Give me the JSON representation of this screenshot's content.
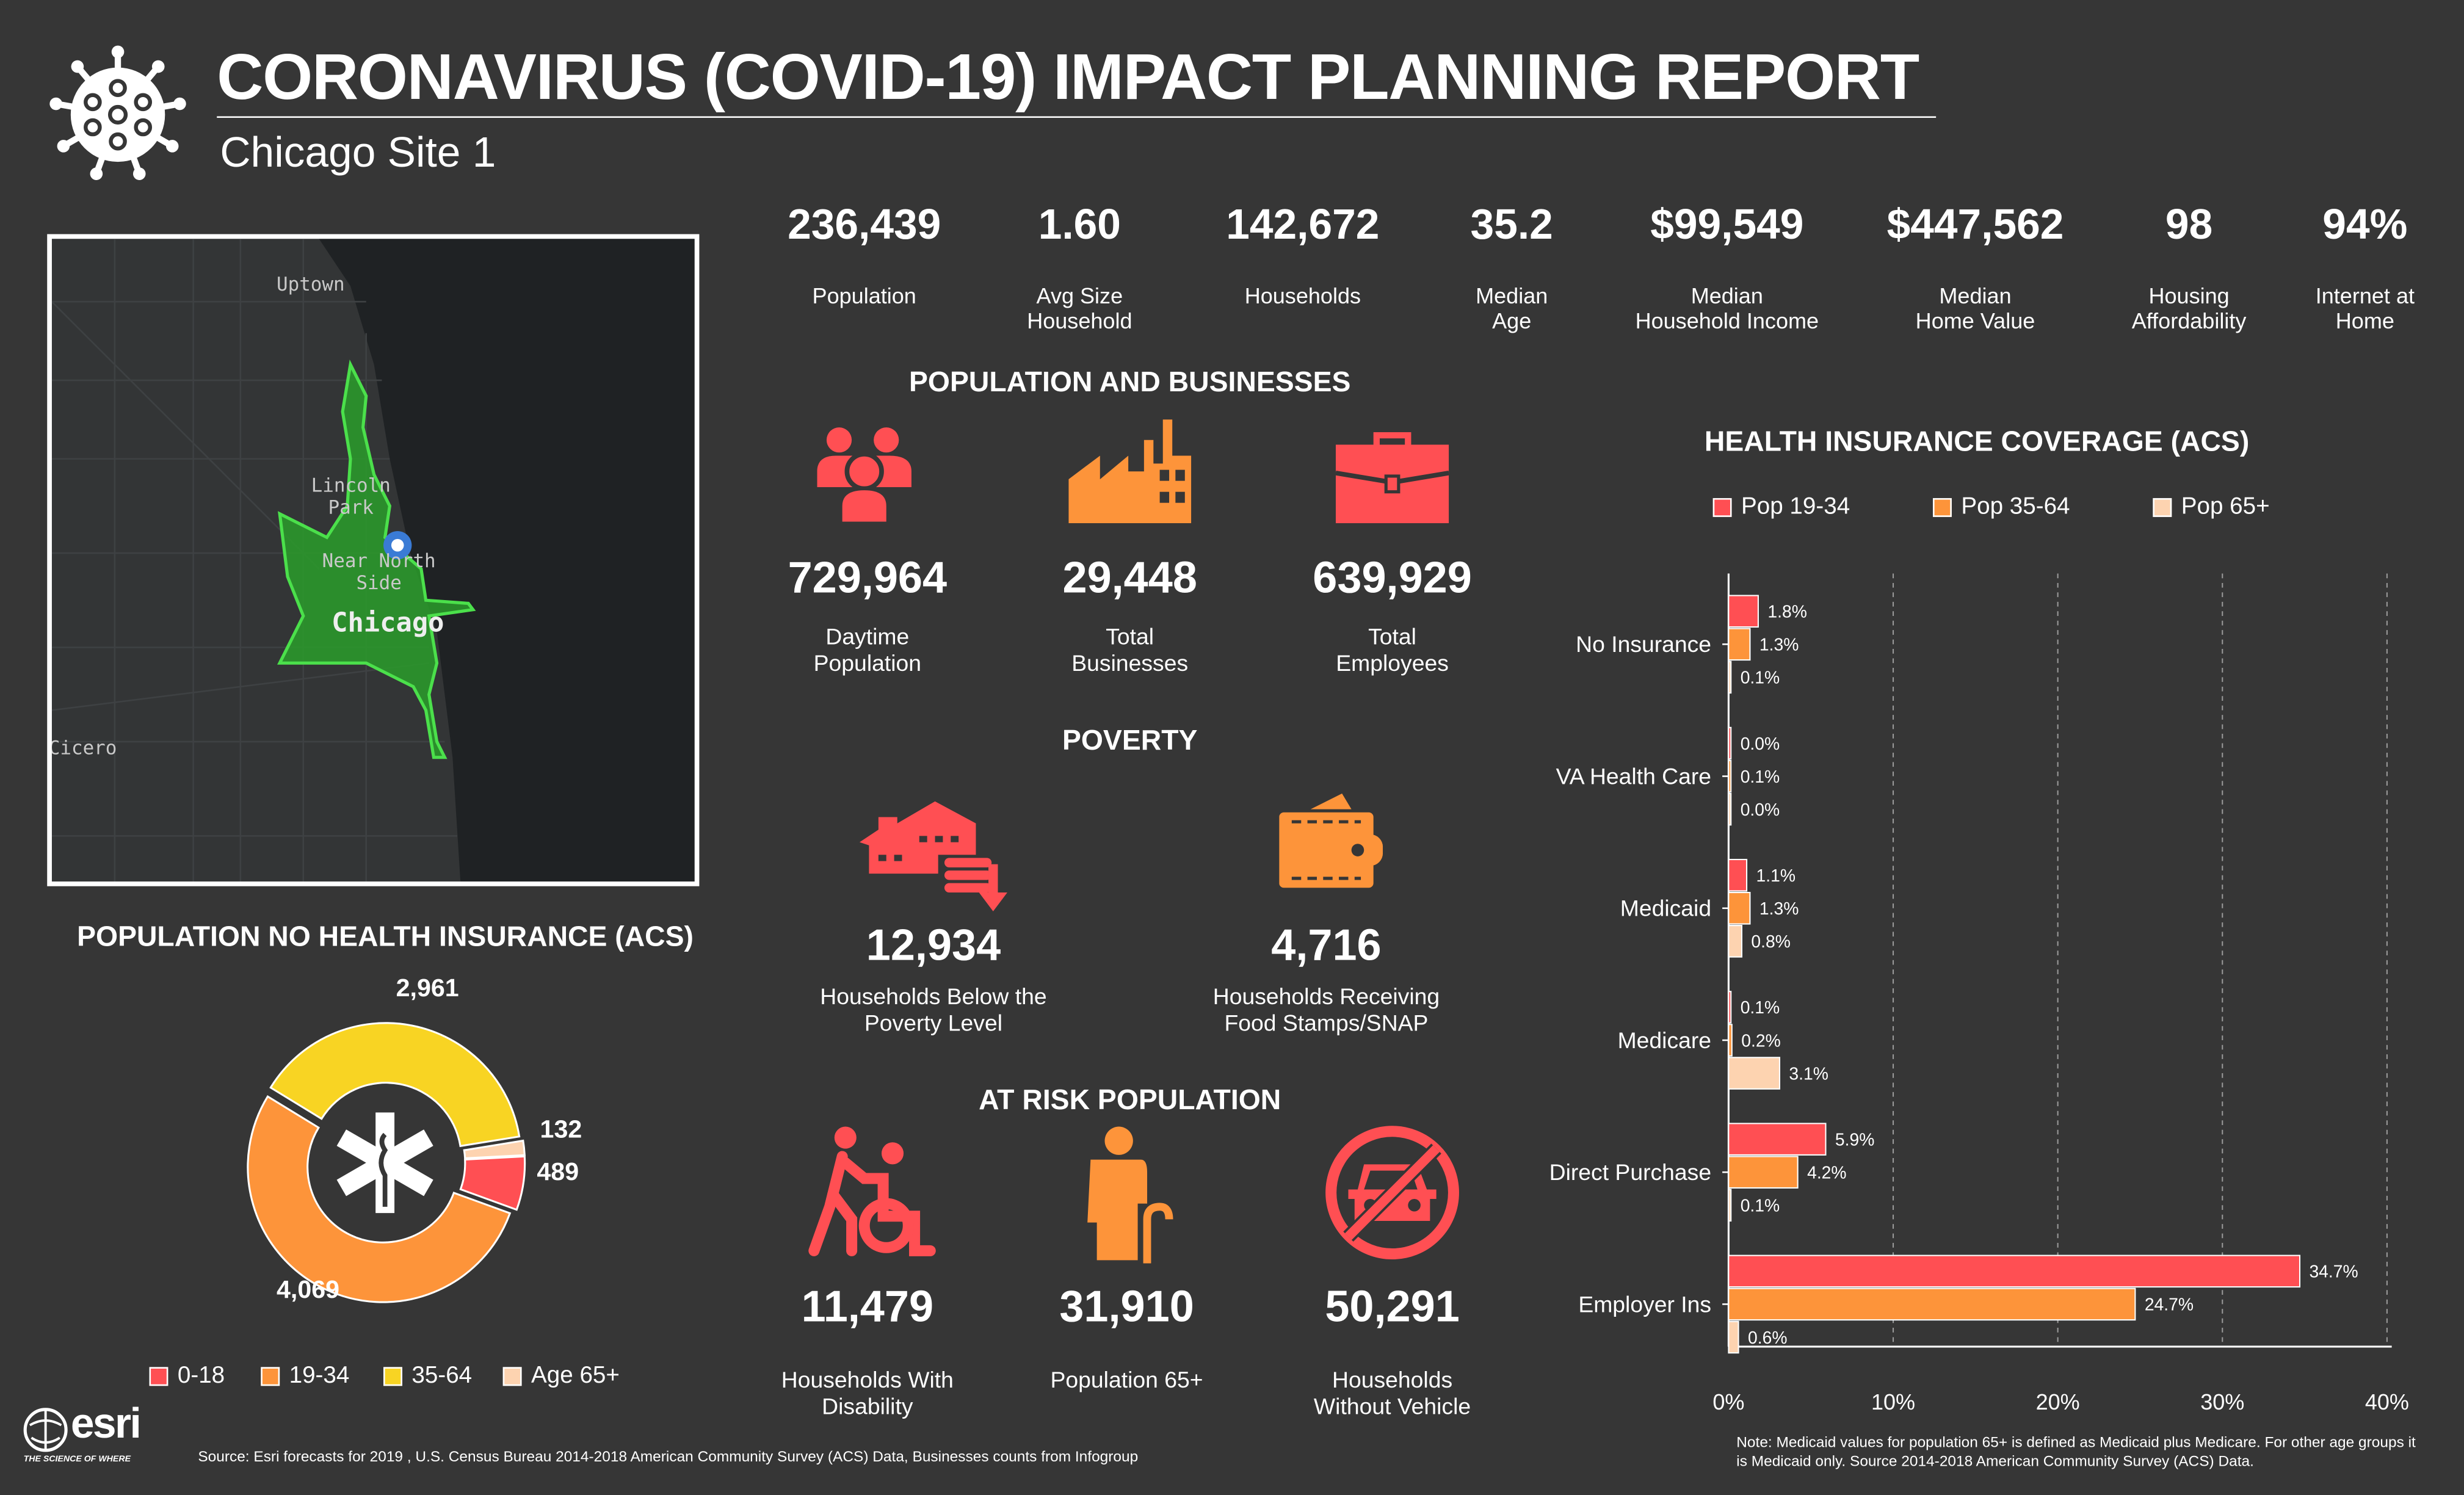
{
  "header": {
    "title": "CORONAVIRUS (COVID-19) IMPACT PLANNING REPORT",
    "subtitle": "Chicago Site 1",
    "logo_icon": "virus-icon"
  },
  "stats": [
    {
      "value": "236,439",
      "label": "Population"
    },
    {
      "value": "1.60",
      "label": "Avg Size\nHousehold"
    },
    {
      "value": "142,672",
      "label": "Households"
    },
    {
      "value": "35.2",
      "label": "Median\nAge"
    },
    {
      "value": "$99,549",
      "label": "Median\nHousehold Income"
    },
    {
      "value": "$447,562",
      "label": "Median\nHome Value"
    },
    {
      "value": "98",
      "label": "Housing\nAffordability"
    },
    {
      "value": "94%",
      "label": "Internet at\nHome"
    }
  ],
  "map": {
    "labels": [
      "Uptown",
      "Lincoln\nPark",
      "Near North\nSide",
      "Chicago",
      "Cicero"
    ]
  },
  "population_businesses": {
    "title": "POPULATION AND BUSINESSES",
    "items": [
      {
        "icon": "people-icon",
        "value": "729,964",
        "label": "Daytime\nPopulation"
      },
      {
        "icon": "factory-icon",
        "value": "29,448",
        "label": "Total\nBusinesses"
      },
      {
        "icon": "briefcase-icon",
        "value": "639,929",
        "label": "Total\nEmployees"
      }
    ]
  },
  "poverty": {
    "title": "POVERTY",
    "items": [
      {
        "icon": "house-coins-down-icon",
        "value": "12,934",
        "label": "Households Below the\nPoverty Level"
      },
      {
        "icon": "wallet-icon",
        "value": "4,716",
        "label": "Households Receiving\nFood Stamps/SNAP"
      }
    ]
  },
  "at_risk": {
    "title": "AT RISK POPULATION",
    "items": [
      {
        "icon": "wheelchair-icon",
        "value": "11,479",
        "label": "Households With\nDisability"
      },
      {
        "icon": "elderly-person-icon",
        "value": "31,910",
        "label": "Population 65+"
      },
      {
        "icon": "no-car-icon",
        "value": "50,291",
        "label": "Households\nWithout Vehicle"
      }
    ]
  },
  "colors": {
    "background": "#363636",
    "red": "#ff4f53",
    "orange": "#fd943a",
    "yellow": "#f8d423",
    "peach": "#fdd3b0",
    "green": "#2eb82e"
  },
  "chart_data": [
    {
      "type": "pie",
      "title": "POPULATION NO HEALTH INSURANCE (ACS)",
      "donut": true,
      "center_icon": "star-of-life-icon",
      "categories": [
        "0-18",
        "19-34",
        "35-64",
        "Age 65+"
      ],
      "values": [
        489,
        4069,
        2961,
        132
      ],
      "data_labels": [
        "489",
        "4,069",
        "2,961",
        "132"
      ],
      "colors": [
        "#ff4f53",
        "#fd943a",
        "#f8d423",
        "#fdd3b0"
      ],
      "legend": "bottom"
    },
    {
      "type": "bar",
      "orientation": "horizontal",
      "title": "HEALTH INSURANCE COVERAGE (ACS)",
      "categories": [
        "No Insurance",
        "VA Health Care",
        "Medicaid",
        "Medicare",
        "Direct Purchase",
        "Employer Ins"
      ],
      "series": [
        {
          "name": "Pop 19-34",
          "color": "#ff4f53",
          "values": [
            1.8,
            0.0,
            1.1,
            0.1,
            5.9,
            34.7
          ]
        },
        {
          "name": "Pop 35-64",
          "color": "#fd943a",
          "values": [
            1.3,
            0.1,
            1.3,
            0.2,
            4.2,
            24.7
          ]
        },
        {
          "name": "Pop 65+",
          "color": "#fdd3b0",
          "values": [
            0.1,
            0.0,
            0.8,
            3.1,
            0.1,
            0.6
          ]
        }
      ],
      "xlim": [
        0,
        40
      ],
      "xticks": [
        "0%",
        "10%",
        "20%",
        "30%",
        "40%"
      ],
      "grid": "vertical dashed",
      "legend": "top"
    }
  ],
  "footer": {
    "source": "Source: Esri forecasts for 2019 , U.S. Census Bureau  2014-2018 American Community Survey (ACS) Data, Businesses counts from Infogroup",
    "note": "Note: Medicaid values for population 65+ is defined as Medicaid plus Medicare. For other age groups it is Medicaid only. Source 2014-2018 American Community Survey (ACS) Data.",
    "logo": "esri",
    "tagline": "THE SCIENCE OF WHERE"
  }
}
